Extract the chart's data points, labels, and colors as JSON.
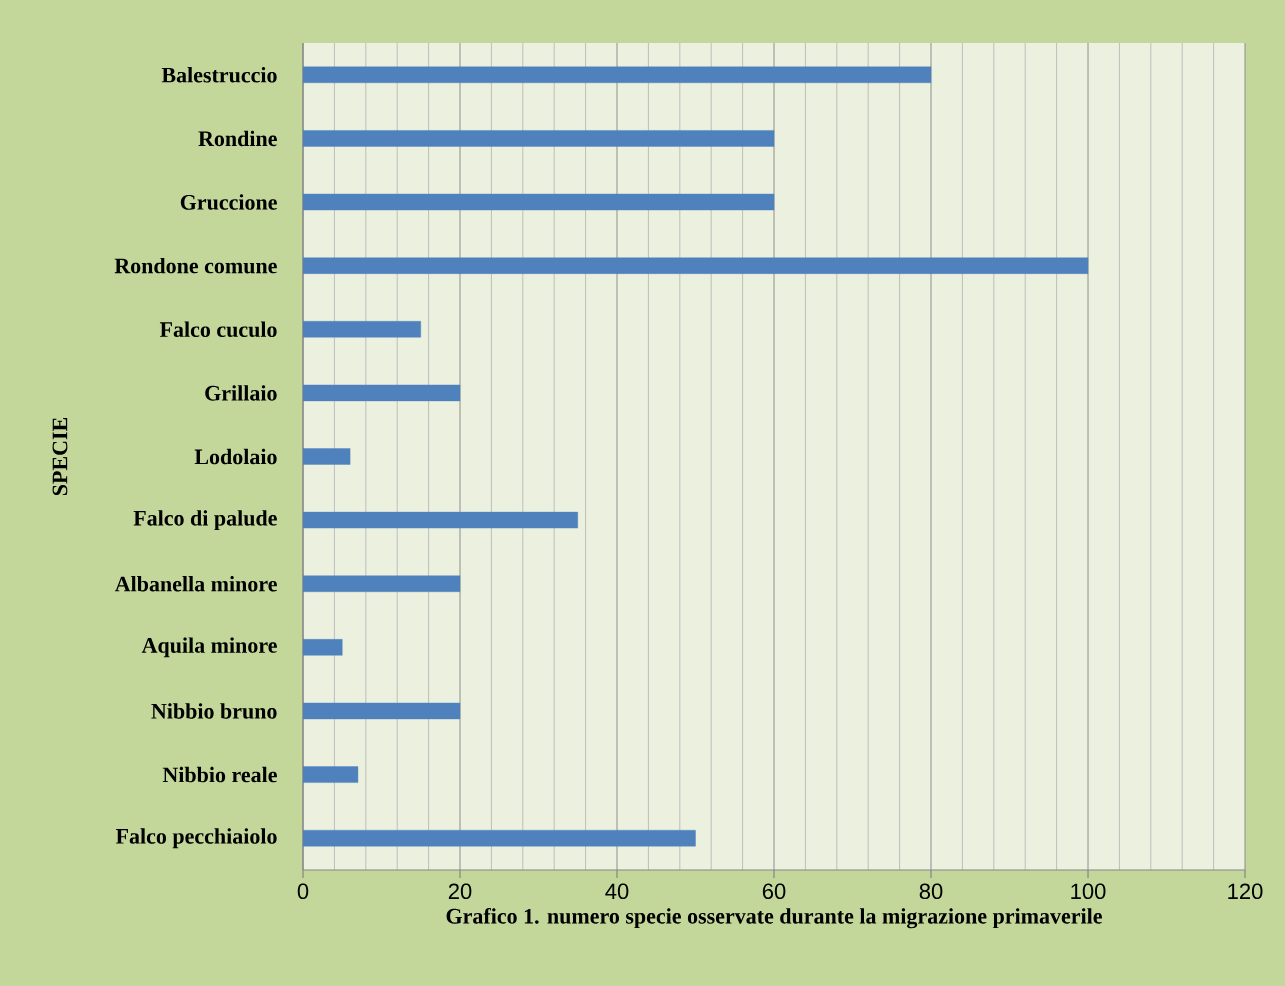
{
  "chart_data": {
    "type": "bar",
    "orientation": "horizontal",
    "xlabel": "Grafico 1. numero specie osservate durante la migrazione primaverile",
    "ylabel": "SPECIE",
    "categories": [
      "Balestruccio",
      "Rondine",
      "Gruccione",
      "Rondone comune",
      "Falco cuculo",
      "Grillaio",
      "Lodolaio",
      "Falco di palude",
      "Albanella minore",
      "Aquila minore",
      "Nibbio bruno",
      "Nibbio reale",
      "Falco pecchiaiolo"
    ],
    "values": [
      80,
      60,
      60,
      100,
      15,
      20,
      6,
      35,
      20,
      5,
      20,
      7,
      50
    ],
    "color": "#4f81bd",
    "xlim": [
      0,
      120
    ],
    "xticks": [
      0,
      20,
      40,
      60,
      80,
      100,
      120
    ],
    "grid": "x"
  }
}
